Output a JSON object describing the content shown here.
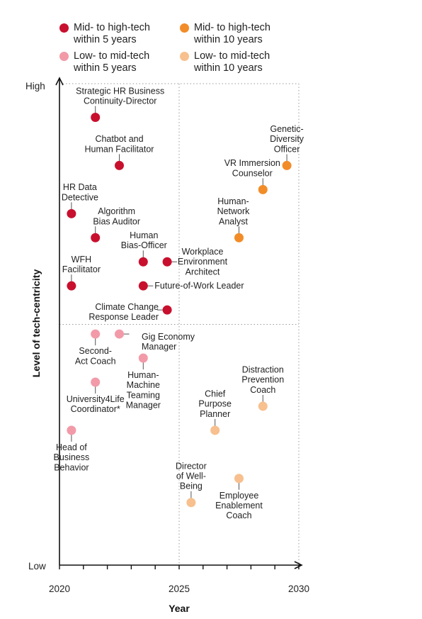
{
  "chart_data": {
    "type": "scatter",
    "xlabel": "Year",
    "ylabel": "Level of tech-centricity",
    "xlim": [
      2020,
      2030
    ],
    "x_ticks": [
      "2020",
      "2025",
      "2030"
    ],
    "y_ticks": [
      "High",
      "Low"
    ],
    "grid": "dotted quadrant lines at 2025 and mid-level",
    "legend_position": "top",
    "series": [
      {
        "name": "Mid- to high-tech within 5 years",
        "color": "#c8102e"
      },
      {
        "name": "Mid- to high-tech within 10 years",
        "color": "#f28c28"
      },
      {
        "name": "Low- to mid-tech within 5 years",
        "color": "#f29aa8"
      },
      {
        "name": "Low- to mid-tech within 10 years",
        "color": "#f7c08e"
      }
    ],
    "points": [
      {
        "label": [
          "Strategic HR Business",
          "Continuity-Director"
        ],
        "x": 2021.5,
        "y": 0.93,
        "series": 0
      },
      {
        "label": [
          "Chatbot and",
          "Human Facilitator"
        ],
        "x": 2022.5,
        "y": 0.83,
        "series": 0
      },
      {
        "label": [
          "HR Data",
          "Detective"
        ],
        "x": 2020.5,
        "y": 0.73,
        "series": 0
      },
      {
        "label": [
          "Algorithm",
          "Bias Auditor"
        ],
        "x": 2021.5,
        "y": 0.68,
        "series": 0
      },
      {
        "label": [
          "Human",
          "Bias-Officer"
        ],
        "x": 2023.5,
        "y": 0.63,
        "series": 0
      },
      {
        "label": [
          "Workplace",
          "Environment",
          "Architect"
        ],
        "x": 2024.5,
        "y": 0.63,
        "series": 0
      },
      {
        "label": [
          "WFH",
          "Facilitator"
        ],
        "x": 2020.5,
        "y": 0.58,
        "series": 0
      },
      {
        "label": [
          "Future-of-Work Leader"
        ],
        "x": 2023.5,
        "y": 0.58,
        "series": 0
      },
      {
        "label": [
          "Climate Change",
          "Response Leader"
        ],
        "x": 2024.5,
        "y": 0.53,
        "series": 0
      },
      {
        "label": [
          "Genetic-",
          "Diversity",
          "Officer"
        ],
        "x": 2029.5,
        "y": 0.83,
        "series": 1
      },
      {
        "label": [
          "VR Immersion",
          "Counselor"
        ],
        "x": 2028.5,
        "y": 0.78,
        "series": 1
      },
      {
        "label": [
          "Human-",
          "Network",
          "Analyst"
        ],
        "x": 2027.5,
        "y": 0.68,
        "series": 1
      },
      {
        "label": [
          "Second-",
          "Act Coach"
        ],
        "x": 2021.5,
        "y": 0.48,
        "series": 2
      },
      {
        "label": [
          "Gig Economy",
          "Manager"
        ],
        "x": 2022.5,
        "y": 0.48,
        "series": 2
      },
      {
        "label": [
          "Human-",
          "Machine",
          "Teaming",
          "Manager"
        ],
        "x": 2023.5,
        "y": 0.43,
        "series": 2
      },
      {
        "label": [
          "University4Life",
          "Coordinator*"
        ],
        "x": 2021.5,
        "y": 0.38,
        "series": 2
      },
      {
        "label": [
          "Head of",
          "Business",
          "Behavior"
        ],
        "x": 2020.5,
        "y": 0.28,
        "series": 2
      },
      {
        "label": [
          "Distraction",
          "Prevention",
          "Coach"
        ],
        "x": 2028.5,
        "y": 0.33,
        "series": 3
      },
      {
        "label": [
          "Chief",
          "Purpose",
          "Planner"
        ],
        "x": 2026.5,
        "y": 0.28,
        "series": 3
      },
      {
        "label": [
          "Employee",
          "Enablement",
          "Coach"
        ],
        "x": 2027.5,
        "y": 0.18,
        "series": 3
      },
      {
        "label": [
          "Director",
          "of Well-",
          "Being"
        ],
        "x": 2025.5,
        "y": 0.13,
        "series": 3
      }
    ]
  }
}
